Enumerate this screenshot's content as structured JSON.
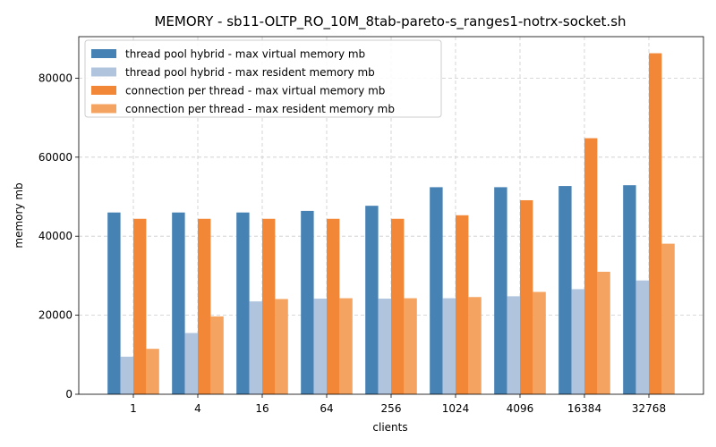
{
  "chart_data": {
    "type": "bar",
    "title": "MEMORY - sb11-OLTP_RO_10M_8tab-pareto-s_ranges1-notrx-socket.sh",
    "xlabel": "clients",
    "ylabel": "memory mb",
    "categories": [
      "1",
      "4",
      "16",
      "64",
      "256",
      "1024",
      "4096",
      "16384",
      "32768"
    ],
    "ylim": [
      0,
      90500
    ],
    "yticks": [
      0,
      20000,
      40000,
      60000,
      80000
    ],
    "grid": true,
    "legend_position": "top-left",
    "series": [
      {
        "name": "thread pool hybrid - max virtual memory mb",
        "color": "#4682b4",
        "values": [
          46000,
          46000,
          46000,
          46400,
          47700,
          52400,
          52400,
          52700,
          52900
        ]
      },
      {
        "name": "thread pool hybrid - max resident memory mb",
        "color": "#b0c4de",
        "values": [
          9500,
          15500,
          23500,
          24200,
          24200,
          24300,
          24800,
          26600,
          28800
        ]
      },
      {
        "name": "connection per thread - max virtual memory mb",
        "color": "#f28737",
        "values": [
          44400,
          44400,
          44400,
          44400,
          44400,
          45300,
          49100,
          64800,
          86300
        ]
      },
      {
        "name": "connection per thread - max resident memory mb",
        "color": "#f4a460",
        "values": [
          11500,
          19700,
          24100,
          24300,
          24300,
          24600,
          25900,
          31000,
          38100
        ]
      }
    ]
  }
}
